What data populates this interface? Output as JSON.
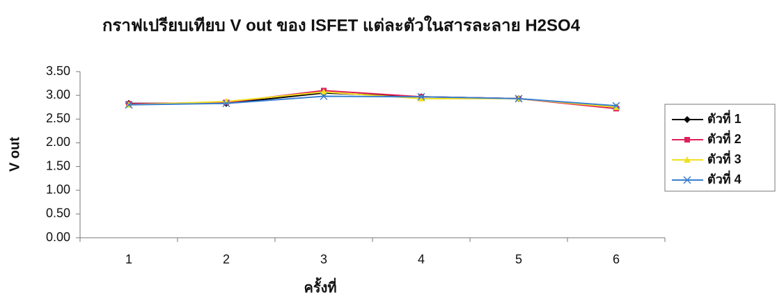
{
  "chart_data": {
    "type": "line",
    "title": "กราฟเปรียบเทียบ V out ของ ISFET แต่ละตัวในสารละลาย H2SO4",
    "x_label": "ครั้งที่",
    "y_label": "V out",
    "categories": [
      "1",
      "2",
      "3",
      "4",
      "5",
      "6"
    ],
    "series": [
      {
        "name": "ตัวที่ 1",
        "color": "#000000",
        "marker": "diamond",
        "values": [
          2.83,
          2.83,
          3.05,
          2.97,
          2.93,
          2.75
        ]
      },
      {
        "name": "ตัวที่ 2",
        "color": "#e0205a",
        "marker": "square",
        "values": [
          2.82,
          2.85,
          3.1,
          2.97,
          2.93,
          2.72
        ]
      },
      {
        "name": "ตัวที่ 3",
        "color": "#f0e020",
        "marker": "triangle",
        "values": [
          2.8,
          2.87,
          3.07,
          2.93,
          2.93,
          2.75
        ]
      },
      {
        "name": "ตัวที่ 4",
        "color": "#3a7fd0",
        "marker": "x",
        "values": [
          2.8,
          2.83,
          2.98,
          2.97,
          2.93,
          2.78
        ]
      }
    ],
    "ylim": [
      0,
      3.5
    ],
    "yticks": [
      {
        "value": 0,
        "label": "0.00"
      },
      {
        "value": 0.5,
        "label": "0.50"
      },
      {
        "value": 1,
        "label": "1.00"
      },
      {
        "value": 1.5,
        "label": "1.50"
      },
      {
        "value": 2,
        "label": "2.00"
      },
      {
        "value": 2.5,
        "label": "2.50"
      },
      {
        "value": 3,
        "label": "3.00"
      },
      {
        "value": 3.5,
        "label": "3.50"
      }
    ],
    "grid": false,
    "legend": "right"
  }
}
